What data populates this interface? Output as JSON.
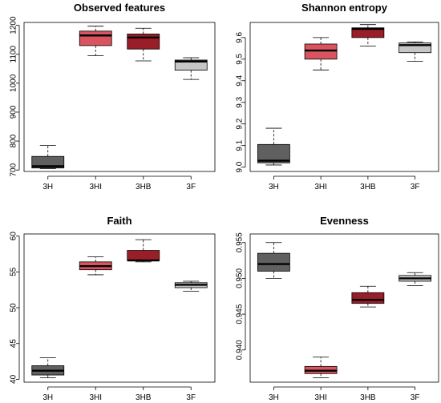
{
  "chart_data": [
    {
      "type": "box",
      "title": "Observed features",
      "categories": [
        "3H",
        "3HI",
        "3HB",
        "3F"
      ],
      "ylim": [
        695,
        1210
      ],
      "yticks": [
        "700",
        "800",
        "900",
        "1000",
        "1100",
        "1200"
      ],
      "ytick_values": [
        700,
        800,
        900,
        1000,
        1100,
        1200
      ],
      "boxes": [
        {
          "min": 705,
          "q1": 707,
          "median": 713,
          "q3": 747,
          "max": 785
        },
        {
          "min": 1095,
          "q1": 1130,
          "median": 1165,
          "q3": 1180,
          "max": 1197
        },
        {
          "min": 1077,
          "q1": 1118,
          "median": 1158,
          "q3": 1170,
          "max": 1190
        },
        {
          "min": 1013,
          "q1": 1045,
          "median": 1075,
          "q3": 1080,
          "max": 1088
        }
      ]
    },
    {
      "type": "box",
      "title": "Shannon entropy",
      "categories": [
        "3H",
        "3HI",
        "3HB",
        "3F"
      ],
      "ylim": [
        8.98,
        9.67
      ],
      "yticks": [
        "9.0",
        "9.1",
        "9.2",
        "9.3",
        "9.4",
        "9.5",
        "9.6"
      ],
      "ytick_values": [
        9.0,
        9.1,
        9.2,
        9.3,
        9.4,
        9.5,
        9.6
      ],
      "boxes": [
        {
          "min": 9.01,
          "q1": 9.02,
          "median": 9.03,
          "q3": 9.105,
          "max": 9.18
        },
        {
          "min": 9.45,
          "q1": 9.5,
          "median": 9.54,
          "q3": 9.57,
          "max": 9.6
        },
        {
          "min": 9.56,
          "q1": 9.6,
          "median": 9.64,
          "q3": 9.645,
          "max": 9.66
        },
        {
          "min": 9.49,
          "q1": 9.53,
          "median": 9.565,
          "q3": 9.575,
          "max": 9.58
        }
      ]
    },
    {
      "type": "box",
      "title": "Faith",
      "categories": [
        "3H",
        "3HI",
        "3HB",
        "3F"
      ],
      "ylim": [
        39.6,
        60.3
      ],
      "yticks": [
        "40",
        "45",
        "50",
        "55",
        "60"
      ],
      "ytick_values": [
        40,
        45,
        50,
        55,
        60
      ],
      "boxes": [
        {
          "min": 40.2,
          "q1": 40.6,
          "median": 41.2,
          "q3": 41.9,
          "max": 43.0
        },
        {
          "min": 54.6,
          "q1": 55.3,
          "median": 55.8,
          "q3": 56.4,
          "max": 57.1
        },
        {
          "min": 56.4,
          "q1": 56.6,
          "median": 56.6,
          "q3": 58.0,
          "max": 59.5
        },
        {
          "min": 52.3,
          "q1": 52.8,
          "median": 53.2,
          "q3": 53.5,
          "max": 53.7
        }
      ]
    },
    {
      "type": "box",
      "title": "Evenness",
      "categories": [
        "3H",
        "3HI",
        "3HB",
        "3F"
      ],
      "ylim": [
        0.9355,
        0.9562
      ],
      "yticks": [
        "0.940",
        "0.945",
        "0.950",
        "0.955"
      ],
      "ytick_values": [
        0.94,
        0.945,
        0.95,
        0.955
      ],
      "boxes": [
        {
          "min": 0.95,
          "q1": 0.951,
          "median": 0.952,
          "q3": 0.9535,
          "max": 0.955
        },
        {
          "min": 0.9361,
          "q1": 0.9367,
          "median": 0.9371,
          "q3": 0.9377,
          "max": 0.939
        },
        {
          "min": 0.946,
          "q1": 0.9465,
          "median": 0.947,
          "q3": 0.948,
          "max": 0.9489
        },
        {
          "min": 0.949,
          "q1": 0.9496,
          "median": 0.95,
          "q3": 0.9504,
          "max": 0.9508
        }
      ]
    }
  ],
  "colors": [
    "#606060",
    "#d9545f",
    "#9a1e28",
    "#c6c6c6"
  ]
}
